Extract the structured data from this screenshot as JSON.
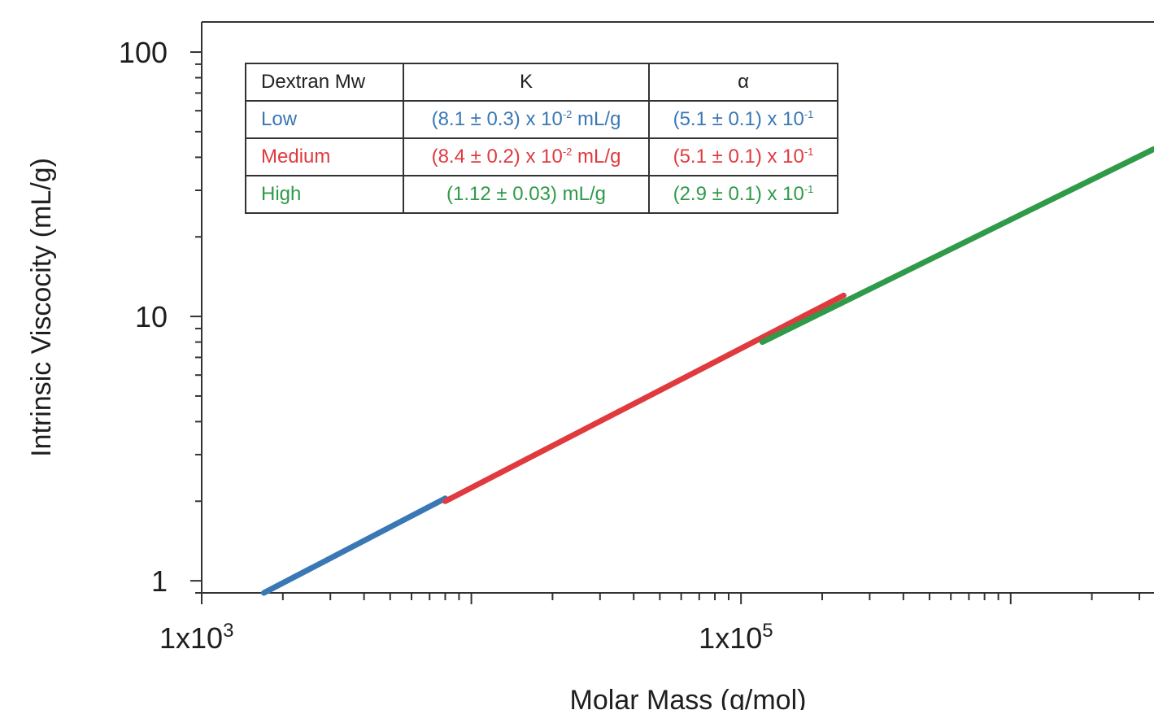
{
  "chart_data": {
    "type": "line",
    "title": "",
    "xlabel": "Molar Mass (g/mol)",
    "ylabel": "Intrinsic Viscocity (mL/g)",
    "xscale": "log",
    "yscale": "log",
    "xlim": [
      1000,
      3400000
    ],
    "ylim": [
      0.9,
      130
    ],
    "x_tick_labels": [
      {
        "value": 1000,
        "base": "1x10",
        "exp": "3"
      },
      {
        "value": 100000,
        "base": "1x10",
        "exp": "5"
      }
    ],
    "y_tick_labels": [
      {
        "value": 1,
        "text": "1"
      },
      {
        "value": 10,
        "text": "10"
      },
      {
        "value": 100,
        "text": "100"
      }
    ],
    "grid": false,
    "series": [
      {
        "color": "#3a78b5",
        "x": [
          1700,
          8000
        ],
        "y": [
          0.9,
          2.05
        ]
      },
      {
        "color": "#e03a3f",
        "x": [
          8000,
          240000
        ],
        "y": [
          2.0,
          12.0
        ]
      },
      {
        "color": "#2f9a48",
        "x": [
          120000,
          3400000
        ],
        "y": [
          8.0,
          43.0
        ]
      }
    ]
  },
  "table": {
    "headers": [
      "Dextran Mw",
      "K",
      "α"
    ],
    "rows": [
      {
        "label": "Low",
        "color": "#3a78b5",
        "k": {
          "pre": "(8.1 ± 0.3) x 10",
          "exp": "-2",
          "post": " mL/g"
        },
        "a": {
          "pre": "(5.1 ± 0.1) x 10",
          "exp": "-1",
          "post": ""
        }
      },
      {
        "label": "Medium",
        "color": "#e03a3f",
        "k": {
          "pre": "(8.4 ± 0.2) x 10",
          "exp": "-2",
          "post": " mL/g"
        },
        "a": {
          "pre": "(5.1 ± 0.1) x 10",
          "exp": "-1",
          "post": ""
        }
      },
      {
        "label": "High",
        "color": "#2f9a48",
        "k": {
          "pre": "(1.12 ± 0.03) mL/g",
          "exp": "",
          "post": ""
        },
        "a": {
          "pre": "(2.9 ± 0.1) x 10",
          "exp": "-1",
          "post": ""
        }
      }
    ]
  }
}
